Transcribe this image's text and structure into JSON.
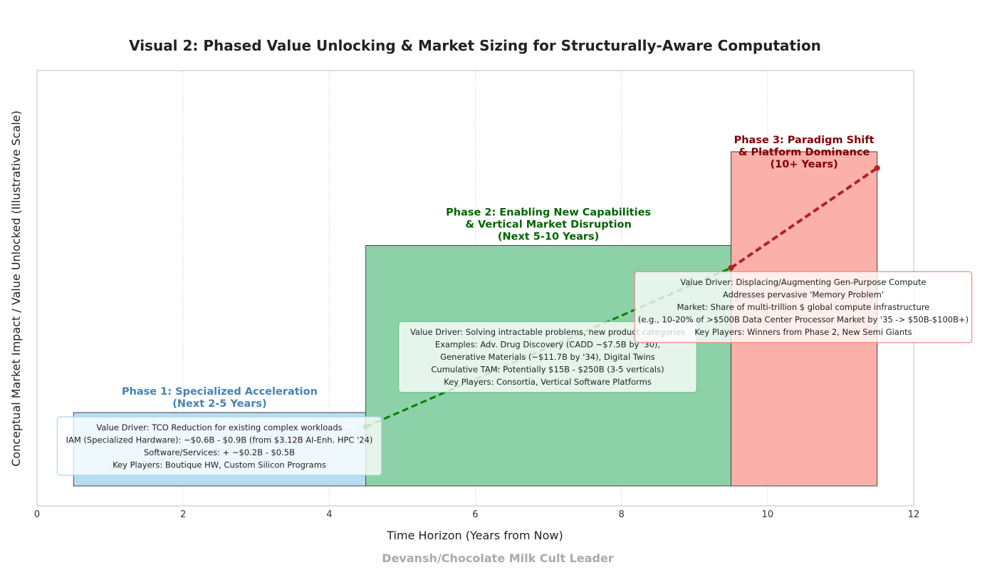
{
  "chart_data": {
    "type": "bar",
    "title": "Visual 2: Phased Value Unlocking & Market Sizing for Structurally-Aware Computation",
    "xlabel": "Time Horizon (Years from Now)",
    "ylabel": "Conceptual Market Impact / Value Unlocked (Illustrative Scale)",
    "xlim": [
      0,
      12
    ],
    "ylim": [
      0,
      100
    ],
    "x_ticks": [
      0,
      2,
      4,
      6,
      8,
      10,
      12
    ],
    "y_ticks_shown": false,
    "grid": "vertical-dotted",
    "phases": [
      {
        "start": 0.5,
        "end": 4.5,
        "height": 18,
        "fill": "#b6def1",
        "label_color": "#4682b4",
        "title": [
          "Phase 1: Specialized Acceleration",
          "(Next 2-5 Years)"
        ],
        "box_border": "#a8d8ea",
        "box_lines": [
          "Value Driver: TCO Reduction for existing complex workloads",
          "IAM (Specialized Hardware): ~$0.6B - $0.9B (from $3.12B AI-Enh. HPC '24)",
          "Software/Services: + ~$0.2B - $0.5B",
          "Key Players: Boutique HW, Custom Silicon Programs"
        ]
      },
      {
        "start": 4.5,
        "end": 9.5,
        "height": 59,
        "fill": "#8dd1a8",
        "label_color": "#006400",
        "title": [
          "Phase 2: Enabling New Capabilities",
          "& Vertical Market Disruption",
          "(Next 5-10 Years)"
        ],
        "box_border": "#6fc08f",
        "box_lines": [
          "Value Driver: Solving intractable problems, new product categories",
          "Examples: Adv. Drug Discovery (CADD ~$7.5B by '30),",
          "Generative Materials (~$11.7B by '34), Digital Twins",
          "Cumulative TAM: Potentially $15B - $250B (3-5 verticals)",
          "Key Players: Consortia, Vertical Software Platforms"
        ]
      },
      {
        "start": 9.5,
        "end": 11.5,
        "height": 82,
        "fill": "#fbb1aa",
        "label_color": "#800000",
        "title": [
          "Phase 3: Paradigm Shift",
          "& Platform Dominance",
          "(10+ Years)"
        ],
        "box_border": "#f08a80",
        "box_lines": [
          "Value Driver: Displacing/Augmenting Gen-Purpose Compute",
          "Addresses pervasive 'Memory Problem'",
          "Market: Share of multi-trillion $ global compute infrastructure",
          "(e.g., 10-20% of >$500B Data Center Processor Market by '35 -> $50B-$100B+)",
          "Key Players: Winners from Phase 2, New Semi Giants"
        ]
      }
    ],
    "trajectory": {
      "segments": [
        {
          "x": [
            1.0,
            4.5
          ],
          "y": [
            4.5,
            14.5
          ],
          "color": "#c3b6e0"
        },
        {
          "x": [
            4.5,
            9.5
          ],
          "y": [
            14.5,
            53.5
          ],
          "color": "#008000"
        },
        {
          "x": [
            9.5,
            11.5
          ],
          "y": [
            53.5,
            78
          ],
          "color": "#b22222"
        }
      ]
    },
    "watermark": "Devansh/Chocolate Milk Cult Leader"
  }
}
